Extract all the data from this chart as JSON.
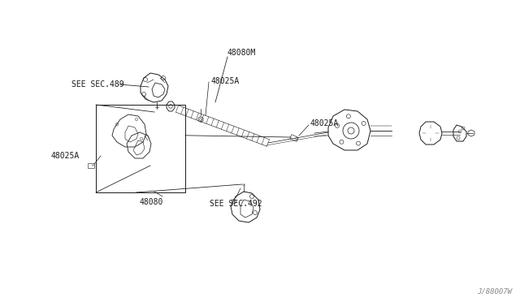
{
  "bg_color": "#ffffff",
  "line_color": "#1a1a1a",
  "gray_color": "#888888",
  "font_size": 7.0,
  "watermark_font_size": 6.5,
  "lw": 0.7,
  "labels": {
    "see_sec_489": "SEE SEC.489",
    "48080M": "48080M",
    "48025A_1": "48025A",
    "48025A_2": "48025A",
    "48025A_3": "48025A",
    "48080": "48080",
    "see_sec_492": "SEE SEC.492",
    "watermark": "J/88007W"
  },
  "figsize": [
    6.4,
    3.72
  ],
  "dpi": 100
}
